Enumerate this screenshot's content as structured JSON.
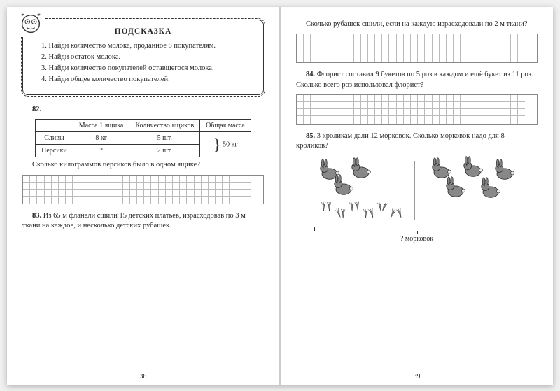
{
  "left": {
    "hint": {
      "title": "ПОДСКАЗКА",
      "lines": [
        "1. Найди количество молока, проданное 8 покупателям.",
        "2. Найди остаток молока.",
        "3. Найди количество покупателей оставшегося молока.",
        "4. Найди общее количество покупателей."
      ]
    },
    "task82": {
      "num": "82.",
      "table": {
        "headers": [
          "",
          "Масса 1 ящика",
          "Количество ящиков",
          "Общая масса"
        ],
        "rows": [
          [
            "Сливы",
            "8 кг",
            "5 шт."
          ],
          [
            "Персики",
            "?",
            "2 шт."
          ]
        ],
        "brace": "50 кг"
      },
      "question": "Сколько килограммов персиков было в одном ящике?"
    },
    "task83": {
      "num": "83.",
      "text": "Из 65 м фланели сшили 15 детских платьев, израсходовав по 3 м ткани на каждое, и несколько детских рубашек."
    },
    "grid": {
      "rows": 4,
      "cols": 32
    },
    "pagenum": "38"
  },
  "right": {
    "task83cont": "Сколько рубашек сшили, если на каждую израсходовали по 2 м ткани?",
    "task84": {
      "num": "84.",
      "text": "Флорист составил 9 букетов по 5 роз в каждом и ещё букет из 11 роз. Сколько всего роз использовал флорист?"
    },
    "task85": {
      "num": "85.",
      "text": "3 кроликам дали 12 морковок. Сколько морковок надо для 8 кроликов?",
      "caption": "? морковок"
    },
    "grid": {
      "rows": 4,
      "cols": 32
    },
    "grid2": {
      "rows": 4,
      "cols": 32
    },
    "pagenum": "39",
    "rabbits": {
      "left_count": 3,
      "right_count": 5,
      "carrot_count": 12
    }
  },
  "colors": {
    "text": "#2a2a2a",
    "border": "#333333",
    "gridline": "#bbbbbb",
    "rabbit_fill": "#888888",
    "carrot_fill": "#8a8a8a"
  }
}
